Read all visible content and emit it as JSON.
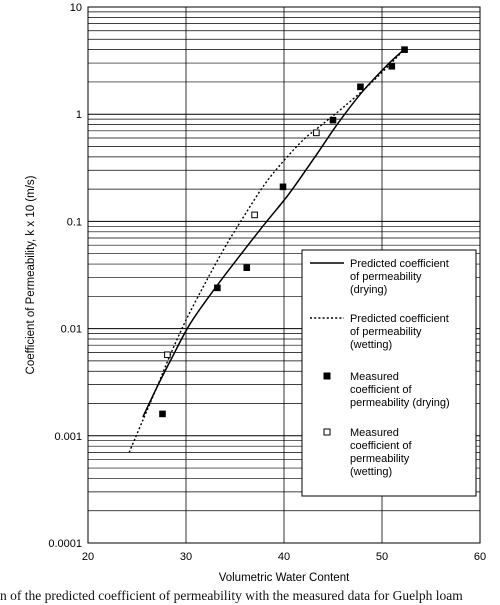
{
  "chart_data": {
    "type": "line",
    "xlabel": "Volumetric Water Content",
    "ylabel": "Coefficient of Permeability, k x 10 (m/s)",
    "xlim": [
      20,
      60
    ],
    "ylim": [
      0.0001,
      10
    ],
    "yscale": "log",
    "xticks": [
      "20",
      "30",
      "40",
      "50",
      "60"
    ],
    "yticks": [
      "0.0001",
      "0.001",
      "0.01",
      "0.1",
      "1",
      "10"
    ],
    "grid": true,
    "legend_position": "right-center",
    "series": [
      {
        "name": "Predicted coefficient of permeability (drying)",
        "kind": "line",
        "style": "solid",
        "x": [
          25.6,
          27,
          28.4,
          30.4,
          33,
          35.5,
          38,
          40.5,
          43,
          45.5,
          48,
          50.5,
          52.3
        ],
        "y": [
          0.0015,
          0.0028,
          0.005,
          0.011,
          0.024,
          0.048,
          0.094,
          0.18,
          0.38,
          0.82,
          1.62,
          2.85,
          4.05
        ]
      },
      {
        "name": "Predicted coefficient of permeability (wetting)",
        "kind": "line",
        "style": "dotted",
        "x": [
          24.2,
          25.6,
          27,
          28.4,
          30,
          32,
          34,
          36,
          38,
          40,
          42,
          43.5,
          46,
          49,
          52.5
        ],
        "y": [
          0.0007,
          0.0014,
          0.0028,
          0.0057,
          0.012,
          0.027,
          0.058,
          0.115,
          0.22,
          0.37,
          0.58,
          0.75,
          1.15,
          2.0,
          4.2
        ]
      },
      {
        "name": "Measured coefficient of permeability (drying)",
        "kind": "scatter",
        "marker": "filled-square",
        "x": [
          27.6,
          33.2,
          36.2,
          39.9,
          45.0,
          47.8,
          51.0,
          52.3
        ],
        "y": [
          0.0016,
          0.024,
          0.037,
          0.21,
          0.88,
          1.8,
          2.8,
          4.0
        ]
      },
      {
        "name": "Measured coefficient of permeability (wetting)",
        "kind": "scatter",
        "marker": "open-square",
        "x": [
          28.1,
          37.0,
          43.3
        ],
        "y": [
          0.0057,
          0.115,
          0.67
        ]
      }
    ],
    "legend": [
      {
        "lines": [
          "Predicted coefficient",
          "of permeability",
          "(drying)"
        ]
      },
      {
        "lines": [
          "Predicted coefficient",
          "of permeability",
          "(wetting)"
        ]
      },
      {
        "lines": [
          "Measured",
          "coefficient of",
          "permeability (drying)"
        ]
      },
      {
        "lines": [
          "Measured",
          "coefficient of",
          "permeability",
          "(wetting)"
        ]
      }
    ],
    "colors": {
      "line": "#000000",
      "grid": "#000000",
      "legend_bg": "#ffffff"
    }
  },
  "caption": "n of the predicted coefficient of permeability with the measured data for Guelph loam"
}
